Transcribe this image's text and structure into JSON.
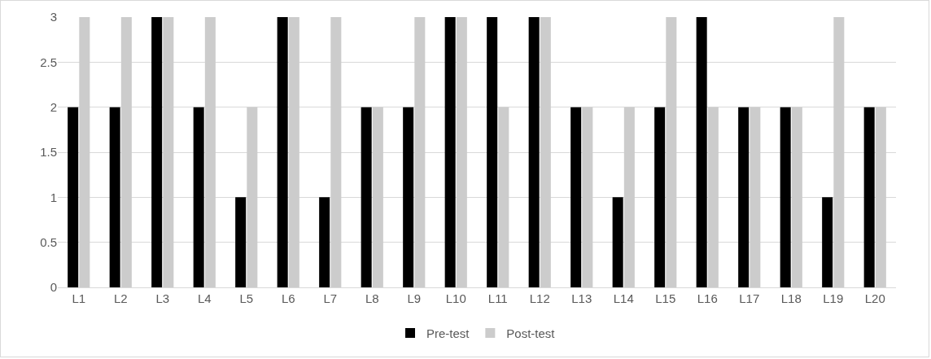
{
  "chart_data": {
    "type": "bar",
    "categories": [
      "L1",
      "L2",
      "L3",
      "L4",
      "L5",
      "L6",
      "L7",
      "L8",
      "L9",
      "L10",
      "L11",
      "L12",
      "L13",
      "L14",
      "L15",
      "L16",
      "L17",
      "L18",
      "L19",
      "L20"
    ],
    "series": [
      {
        "name": "Pre-test",
        "color": "#000000",
        "values": [
          2,
          2,
          3,
          2,
          1,
          3,
          1,
          2,
          2,
          3,
          3,
          3,
          2,
          1,
          2,
          3,
          2,
          2,
          1,
          2
        ]
      },
      {
        "name": "Post-test",
        "color": "#cccccc",
        "values": [
          3,
          3,
          3,
          3,
          2,
          3,
          3,
          2,
          3,
          3,
          2,
          3,
          2,
          2,
          3,
          2,
          2,
          2,
          3,
          2
        ]
      }
    ],
    "ylim": [
      0,
      3
    ],
    "yticks": [
      0,
      0.5,
      1,
      1.5,
      2,
      2.5,
      3
    ],
    "grid": "y",
    "legend": "bottom"
  }
}
